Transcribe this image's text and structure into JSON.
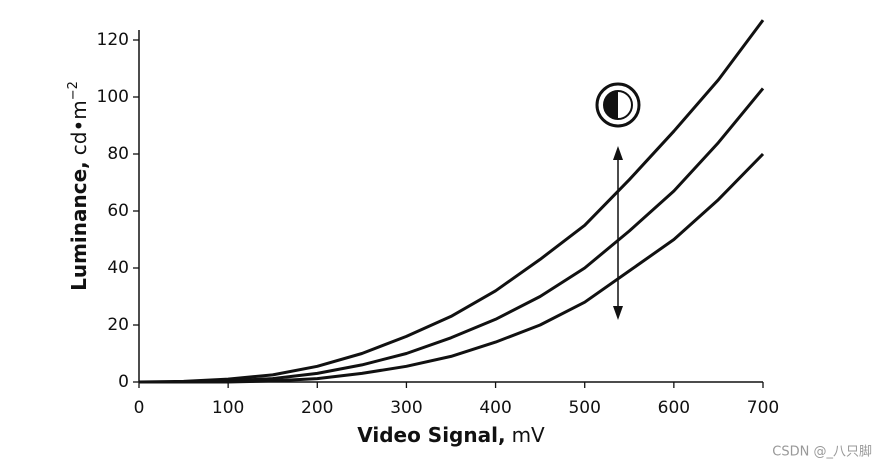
{
  "chart_data": {
    "type": "line",
    "xlabel": "Video Signal,",
    "xlabel_unit": "mV",
    "ylabel": "Luminance,",
    "ylabel_unit": "cd•m",
    "ylabel_exponent": "−2",
    "x": [
      0,
      50,
      100,
      150,
      200,
      250,
      300,
      350,
      400,
      450,
      500,
      550,
      600,
      650,
      700
    ],
    "series": [
      {
        "color": "#111111",
        "values": [
          0,
          0.2,
          1,
          2.5,
          5.5,
          10,
          16,
          23,
          32,
          43,
          55,
          71,
          88,
          106,
          127
        ]
      },
      {
        "color": "#111111",
        "values": [
          0,
          0,
          0.4,
          1.2,
          3,
          6,
          10,
          15.5,
          22,
          30,
          40,
          53,
          67,
          84,
          103
        ]
      },
      {
        "color": "#111111",
        "values": [
          0,
          0,
          0,
          0.4,
          1.2,
          3,
          5.5,
          9,
          14,
          20,
          28,
          39,
          50,
          64,
          80
        ]
      }
    ],
    "xlim": [
      0,
      700
    ],
    "xticks": [
      0,
      100,
      200,
      300,
      400,
      500,
      600,
      700
    ],
    "ylim": [
      0,
      125
    ],
    "yticks": [
      0,
      20,
      40,
      60,
      80,
      100,
      120
    ],
    "watermark": "CSDN @_八只脚"
  }
}
